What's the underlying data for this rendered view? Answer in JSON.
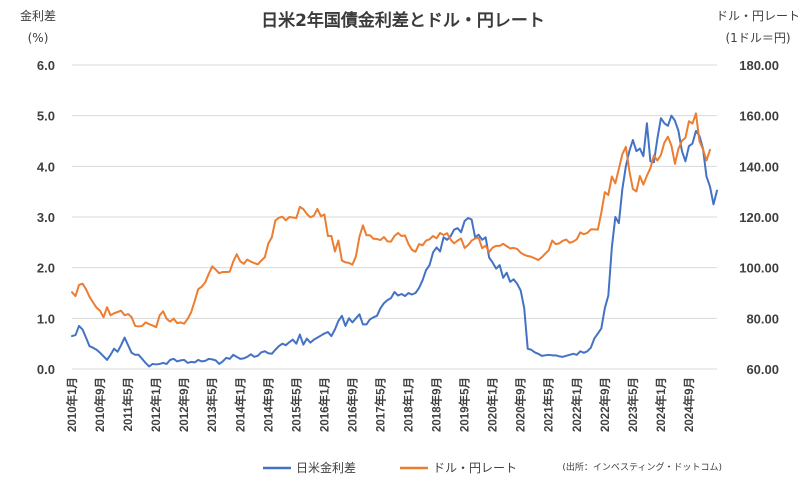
{
  "chart_data": {
    "type": "line",
    "title": "日米2年国債金利差とドル・円レート",
    "left_axis": {
      "label_line1": "金利差",
      "label_line2": "(%)",
      "ylim": [
        0,
        6
      ],
      "ticks": [
        "0.0",
        "1.0",
        "2.0",
        "3.0",
        "4.0",
        "5.0",
        "6.0"
      ]
    },
    "right_axis": {
      "label_line1": "ドル・円レート",
      "label_line2": "(1ドル＝円)",
      "ylim": [
        60,
        180
      ],
      "ticks": [
        "60.00",
        "80.00",
        "100.00",
        "120.00",
        "140.00",
        "160.00",
        "180.00"
      ]
    },
    "x_tick_labels": [
      "2010年1月",
      "2010年9月",
      "2011年5月",
      "2012年1月",
      "2012年9月",
      "2013年5月",
      "2014年1月",
      "2014年9月",
      "2015年5月",
      "2016年1月",
      "2016年9月",
      "2017年5月",
      "2018年1月",
      "2018年9月",
      "2019年5月",
      "2020年1月",
      "2020年9月",
      "2021年5月",
      "2022年1月",
      "2022年9月",
      "2023年5月",
      "2024年1月",
      "2024年9月"
    ],
    "x_start": "2010-01",
    "grid": true,
    "legend_position": "bottom",
    "source": "(出所：インベスティング・ドットコム)",
    "series": [
      {
        "name": "日米金利差",
        "axis": "left",
        "color": "#4472c4",
        "values": [
          0.65,
          0.67,
          0.85,
          0.78,
          0.62,
          0.45,
          0.42,
          0.38,
          0.32,
          0.25,
          0.18,
          0.28,
          0.4,
          0.34,
          0.47,
          0.62,
          0.47,
          0.32,
          0.28,
          0.28,
          0.2,
          0.12,
          0.05,
          0.1,
          0.09,
          0.1,
          0.12,
          0.1,
          0.18,
          0.2,
          0.15,
          0.17,
          0.18,
          0.12,
          0.14,
          0.13,
          0.18,
          0.15,
          0.16,
          0.2,
          0.19,
          0.17,
          0.1,
          0.15,
          0.22,
          0.2,
          0.28,
          0.24,
          0.2,
          0.21,
          0.24,
          0.29,
          0.24,
          0.26,
          0.33,
          0.35,
          0.31,
          0.3,
          0.38,
          0.45,
          0.5,
          0.47,
          0.53,
          0.58,
          0.5,
          0.68,
          0.48,
          0.6,
          0.52,
          0.58,
          0.62,
          0.66,
          0.7,
          0.73,
          0.65,
          0.78,
          0.95,
          1.05,
          0.85,
          1.0,
          0.92,
          1.0,
          1.08,
          0.88,
          0.88,
          0.98,
          1.02,
          1.05,
          1.2,
          1.3,
          1.36,
          1.4,
          1.52,
          1.45,
          1.48,
          1.44,
          1.5,
          1.47,
          1.5,
          1.6,
          1.75,
          1.95,
          2.05,
          2.3,
          2.4,
          2.32,
          2.6,
          2.55,
          2.62,
          2.75,
          2.78,
          2.7,
          2.92,
          2.98,
          2.95,
          2.6,
          2.65,
          2.55,
          2.6,
          2.2,
          2.1,
          1.98,
          2.05,
          1.8,
          1.9,
          1.72,
          1.77,
          1.68,
          1.55,
          1.2,
          0.4,
          0.38,
          0.33,
          0.3,
          0.26,
          0.27,
          0.28,
          0.27,
          0.27,
          0.25,
          0.24,
          0.26,
          0.28,
          0.3,
          0.28,
          0.35,
          0.32,
          0.35,
          0.42,
          0.6,
          0.7,
          0.8,
          1.2,
          1.45,
          2.4,
          3.0,
          2.88,
          3.55,
          4.0,
          4.3,
          4.52,
          4.3,
          4.35,
          4.2,
          4.85,
          4.1,
          4.08,
          4.55,
          4.95,
          4.85,
          4.8,
          5.0,
          4.9,
          4.7,
          4.3,
          4.1,
          4.4,
          4.45,
          4.7,
          4.6,
          4.35,
          3.8,
          3.6,
          3.25,
          3.52
        ]
      },
      {
        "name": "ドル・円レート",
        "axis": "right",
        "color": "#ed7d31",
        "values": [
          90.3,
          88.8,
          93.2,
          93.7,
          91.5,
          88.5,
          86.3,
          84.2,
          83.0,
          80.4,
          84.4,
          81.2,
          82.0,
          82.5,
          83.0,
          81.2,
          81.7,
          80.5,
          77.0,
          76.8,
          77.0,
          78.4,
          77.7,
          77.2,
          76.5,
          81.2,
          82.8,
          79.8,
          78.7,
          79.9,
          78.1,
          78.4,
          77.9,
          79.8,
          82.4,
          86.8,
          91.5,
          92.5,
          94.2,
          97.5,
          100.5,
          99.2,
          97.8,
          98.3,
          98.3,
          98.4,
          102.4,
          105.3,
          102.5,
          101.5,
          103.2,
          102.4,
          101.8,
          101.3,
          102.8,
          104.1,
          109.5,
          112.0,
          118.6,
          119.7,
          120.1,
          118.7,
          120.0,
          119.8,
          119.6,
          124.0,
          123.1,
          121.2,
          119.9,
          120.5,
          123.2,
          120.3,
          121.0,
          112.5,
          112.5,
          106.4,
          110.7,
          102.8,
          102.1,
          101.9,
          101.2,
          104.5,
          112.2,
          116.7,
          112.8,
          112.8,
          111.4,
          111.3,
          110.9,
          112.1,
          110.4,
          110.3,
          112.5,
          113.7,
          112.5,
          112.7,
          109.3,
          107.0,
          106.3,
          109.3,
          108.8,
          110.7,
          111.2,
          112.5,
          111.6,
          113.7,
          112.9,
          113.6,
          111.1,
          109.6,
          110.7,
          111.5,
          107.8,
          108.9,
          110.7,
          111.5,
          111.8,
          107.7,
          108.7,
          106.2,
          107.9,
          108.6,
          108.6,
          109.4,
          108.5,
          107.6,
          107.8,
          107.4,
          105.9,
          105.1,
          104.6,
          104.3,
          103.7,
          103.0,
          104.1,
          105.5,
          106.9,
          110.7,
          109.3,
          109.6,
          110.6,
          111.1,
          109.8,
          110.3,
          111.2,
          113.9,
          113.2,
          113.7,
          115.1,
          115.1,
          115.0,
          121.7,
          129.8,
          128.7,
          136.0,
          133.3,
          139.0,
          144.8,
          147.7,
          138.2,
          131.1,
          130.1,
          136.2,
          132.8,
          136.3,
          139.3,
          144.3,
          142.3,
          144.5,
          149.4,
          151.7,
          148.2,
          141.0,
          146.9,
          150.1,
          151.3,
          157.8,
          156.9,
          160.9,
          149.9,
          146.7,
          142.3,
          146.5
        ]
      }
    ]
  },
  "legend": [
    {
      "label": "日米金利差",
      "color": "#4472c4"
    },
    {
      "label": "ドル・円レート",
      "color": "#ed7d31"
    }
  ]
}
